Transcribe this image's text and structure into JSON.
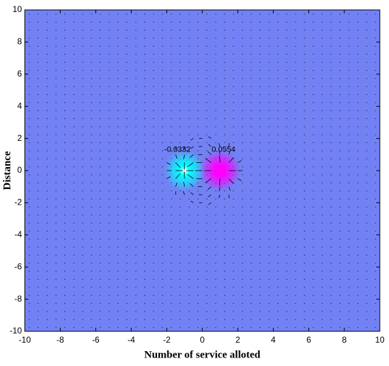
{
  "chart_data": {
    "type": "dipole-field",
    "xlabel": "Number of service alloted",
    "ylabel": "Distance",
    "background": "#7282f5",
    "xlim": [
      -10,
      10
    ],
    "ylim": [
      -10,
      10
    ],
    "xticks": [
      -10,
      -8,
      -6,
      -4,
      -2,
      0,
      2,
      4,
      6,
      8,
      10
    ],
    "yticks": [
      -10,
      -8,
      -6,
      -4,
      -2,
      0,
      2,
      4,
      6,
      8,
      10
    ],
    "sources": [
      {
        "x": -1,
        "y": 0,
        "color": "#00ffff"
      },
      {
        "x": 1,
        "y": 0,
        "color": "#ff00ff"
      }
    ],
    "contour_labels": [
      {
        "text": "-0.0332",
        "x": -1.4,
        "y": 1.3
      },
      {
        "text": "0.0554",
        "x": 1.2,
        "y": 1.3
      }
    ]
  }
}
